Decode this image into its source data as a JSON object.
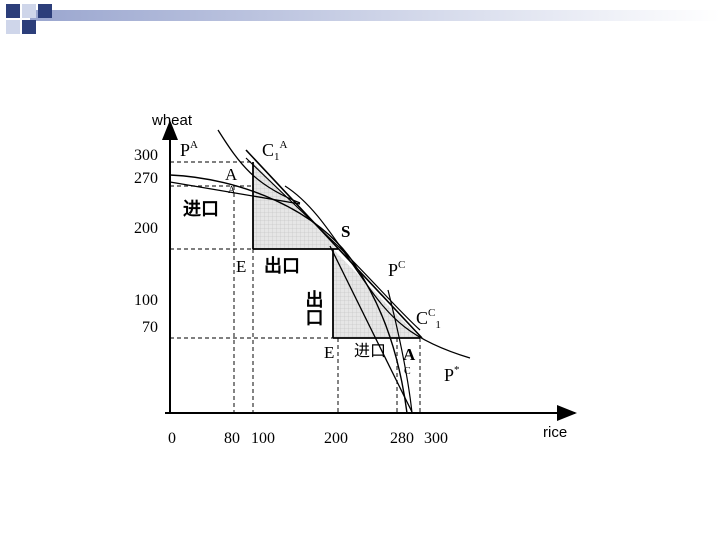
{
  "slide": {
    "x_axis_word": "rice",
    "y_axis_word": "wheat",
    "deco_color_dark": "#2c3e7a",
    "deco_color_light": "#cfd6ea"
  },
  "chart_data": {
    "type": "diagram",
    "x_ticks": [
      "0",
      "80",
      "100",
      "200",
      "280",
      "300"
    ],
    "y_ticks": [
      "300",
      "270",
      "200",
      "100",
      "70"
    ],
    "x_tick_values": [
      0,
      80,
      100,
      200,
      280,
      300
    ],
    "y_tick_values": [
      300,
      270,
      200,
      100,
      70
    ],
    "points": {
      "S": {
        "x": 200,
        "y": 170
      },
      "E_A": {
        "x": 100,
        "y": 170
      },
      "A_home": {
        "x": 100,
        "y": 290
      },
      "E_C": {
        "x": 200,
        "y": 70
      },
      "A_C": {
        "x": 300,
        "y": 70
      }
    },
    "labels": {
      "PA": "P",
      "PA_sup": "A",
      "C1A": "C",
      "C1A_sub": "1",
      "C1A_sup": "A",
      "A_top": "A",
      "A_top_sub": "A",
      "import_top": "进口",
      "E_top": "E",
      "export_top": "出口",
      "S": "S",
      "PC": "P",
      "PC_sup": "C",
      "export_vertical": "出口",
      "CC1": "C",
      "CC1_sup": "C",
      "CC1_sub": "1",
      "E_bottom": "E",
      "import_bottom": "进口",
      "A_bottom": "A",
      "A_bottom_sub": "C",
      "Pstar": "P",
      "Pstar_sup": "*"
    }
  }
}
